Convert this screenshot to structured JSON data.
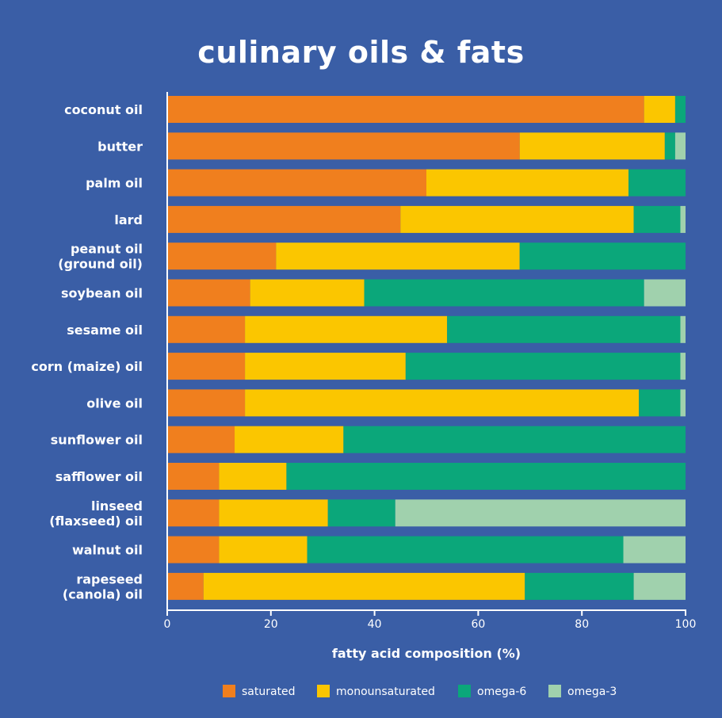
{
  "chart_data": {
    "type": "bar",
    "orientation": "horizontal",
    "stacked": true,
    "title": "culinary oils & fats",
    "xlabel": "fatty acid composition (%)",
    "xlim": [
      0,
      100
    ],
    "xticks": [
      0,
      20,
      40,
      60,
      80,
      100
    ],
    "categories": [
      [
        "coconut oil"
      ],
      [
        "butter"
      ],
      [
        "palm oil"
      ],
      [
        "lard"
      ],
      [
        "peanut oil",
        "(ground oil)"
      ],
      [
        "soybean oil"
      ],
      [
        "sesame oil"
      ],
      [
        "corn (maize) oil"
      ],
      [
        "olive oil"
      ],
      [
        "sunflower oil"
      ],
      [
        "safflower oil"
      ],
      [
        "linseed",
        "(flaxseed) oil"
      ],
      [
        "walnut oil"
      ],
      [
        "rapeseed",
        "(canola) oil"
      ]
    ],
    "series": [
      {
        "name": "saturated",
        "color": "#f07f1e",
        "values": [
          92,
          68,
          50,
          45,
          21,
          16,
          15,
          15,
          15,
          13,
          10,
          10,
          10,
          7
        ]
      },
      {
        "name": "monounsaturated",
        "color": "#fbc600",
        "values": [
          6,
          28,
          39,
          45,
          47,
          22,
          39,
          31,
          76,
          21,
          13,
          21,
          17,
          62
        ]
      },
      {
        "name": "omega-6",
        "color": "#0ba77a",
        "values": [
          2,
          2,
          11,
          9,
          32,
          54,
          45,
          53,
          8,
          66,
          77,
          13,
          61,
          21
        ]
      },
      {
        "name": "omega-3",
        "color": "#a0d1ad",
        "values": [
          0,
          2,
          0,
          1,
          0,
          8,
          1,
          1,
          1,
          0,
          0,
          56,
          12,
          10
        ]
      }
    ],
    "legend_position": "bottom",
    "grid": false
  }
}
